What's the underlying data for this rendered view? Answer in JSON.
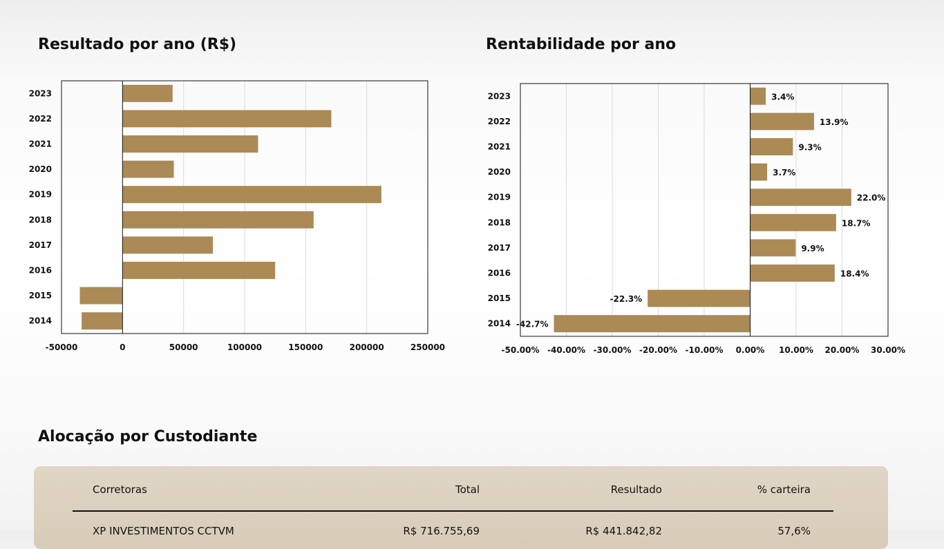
{
  "sections": {
    "resultado_title": "Resultado por ano (R$)",
    "rentabilidade_title": "Rentabilidade por ano",
    "alocacao_title": "Alocação por Custodiante"
  },
  "colors": {
    "bar": "#ab8a55",
    "grid": "#dcdcdc",
    "axis": "#111111"
  },
  "chart_data": [
    {
      "type": "bar",
      "orientation": "horizontal",
      "title": "Resultado por ano (R$)",
      "categories": [
        "2023",
        "2022",
        "2021",
        "2020",
        "2019",
        "2018",
        "2017",
        "2016",
        "2015",
        "2014"
      ],
      "values": [
        41000,
        171000,
        111000,
        42000,
        212000,
        156500,
        74000,
        125000,
        -35000,
        -33500
      ],
      "xlim": [
        -50000,
        250000
      ],
      "xticks": [
        -50000,
        0,
        50000,
        100000,
        150000,
        200000,
        250000
      ],
      "xtick_labels": [
        "-50000",
        "0",
        "50000",
        "100000",
        "150000",
        "200000",
        "250000"
      ],
      "grid": true,
      "data_labels": []
    },
    {
      "type": "bar",
      "orientation": "horizontal",
      "title": "Rentabilidade por ano",
      "categories": [
        "2023",
        "2022",
        "2021",
        "2020",
        "2019",
        "2018",
        "2017",
        "2016",
        "2015",
        "2014"
      ],
      "values": [
        3.4,
        13.9,
        9.3,
        3.7,
        22.0,
        18.7,
        9.9,
        18.4,
        -22.3,
        -42.7
      ],
      "xlim": [
        -50,
        30
      ],
      "xticks": [
        -50,
        -40,
        -30,
        -20,
        -10,
        0,
        10,
        20,
        30
      ],
      "xtick_labels": [
        "-50.00%",
        "-40.00%",
        "-30.00%",
        "-20.00%",
        "-10.00%",
        "0.00%",
        "10.00%",
        "20.00%",
        "30.00%"
      ],
      "grid": true,
      "data_labels": [
        "3.4%",
        "13.9%",
        "9.3%",
        "3.7%",
        "22.0%",
        "18.7%",
        "9.9%",
        "18.4%",
        "-22.3%",
        "-42.7%"
      ]
    }
  ],
  "table": {
    "headers": {
      "brokers": "Corretoras",
      "total": "Total",
      "result": "Resultado",
      "pct": "% carteira"
    },
    "rows": [
      {
        "broker": "XP INVESTIMENTOS CCTVM",
        "total": "R$ 716.755,69",
        "result": "R$ 441.842,82",
        "pct": "57,6%"
      }
    ]
  }
}
